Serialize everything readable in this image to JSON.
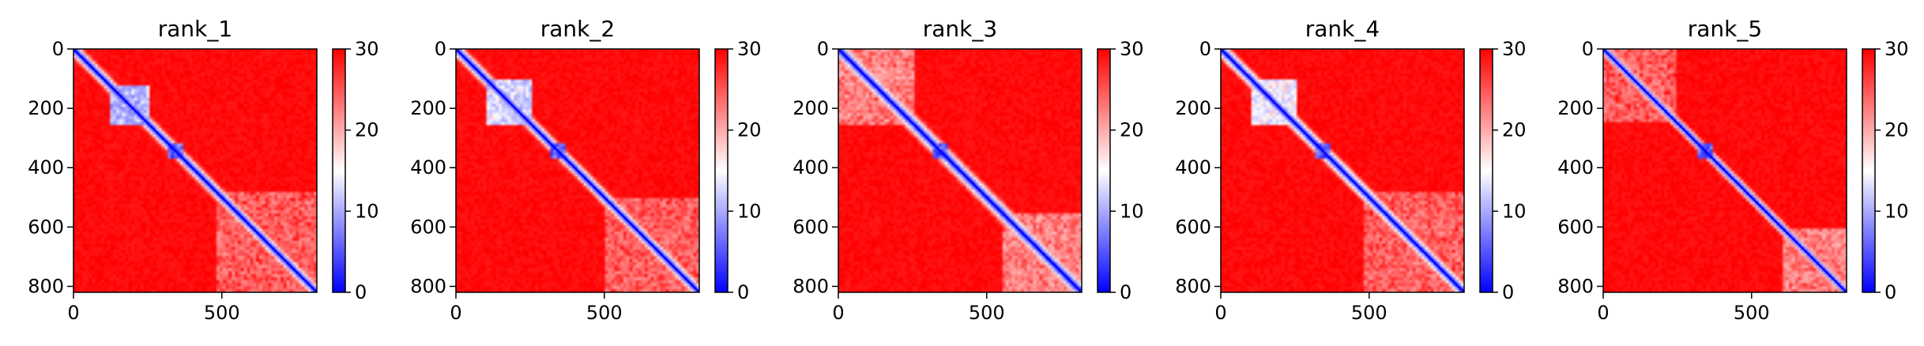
{
  "chart_data": [
    {
      "type": "heatmap",
      "title": "rank_1",
      "matrix_size": 820,
      "xlim": [
        0,
        820
      ],
      "ylim": [
        820,
        0
      ],
      "x_ticks": [
        "0",
        "500"
      ],
      "y_ticks": [
        "0",
        "200",
        "400",
        "600",
        "800"
      ],
      "colorbar": {
        "min": 0,
        "max": 30,
        "ticks": [
          "0",
          "10",
          "20",
          "30"
        ],
        "colormap": "bwr"
      },
      "dominant_value": 30,
      "diagonal_value": 0,
      "near_diagonal_width": 35,
      "blocks": [
        {
          "i0": 120,
          "i1": 260,
          "j0": 120,
          "j1": 260,
          "value": 8
        },
        {
          "i0": 320,
          "i1": 370,
          "j0": 320,
          "j1": 370,
          "value": 3
        },
        {
          "i0": 480,
          "i1": 820,
          "j0": 480,
          "j1": 820,
          "value": 22
        }
      ]
    },
    {
      "type": "heatmap",
      "title": "rank_2",
      "matrix_size": 820,
      "xlim": [
        0,
        820
      ],
      "ylim": [
        820,
        0
      ],
      "x_ticks": [
        "0",
        "500"
      ],
      "y_ticks": [
        "0",
        "200",
        "400",
        "600",
        "800"
      ],
      "colorbar": {
        "min": 0,
        "max": 30,
        "ticks": [
          "0",
          "10",
          "20",
          "30"
        ],
        "colormap": "bwr"
      },
      "dominant_value": 30,
      "diagonal_value": 0,
      "near_diagonal_width": 35,
      "blocks": [
        {
          "i0": 100,
          "i1": 260,
          "j0": 100,
          "j1": 260,
          "value": 10
        },
        {
          "i0": 320,
          "i1": 370,
          "j0": 320,
          "j1": 370,
          "value": 3
        },
        {
          "i0": 500,
          "i1": 820,
          "j0": 500,
          "j1": 820,
          "value": 22
        }
      ]
    },
    {
      "type": "heatmap",
      "title": "rank_3",
      "matrix_size": 820,
      "xlim": [
        0,
        820
      ],
      "ylim": [
        820,
        0
      ],
      "x_ticks": [
        "0",
        "500"
      ],
      "y_ticks": [
        "0",
        "200",
        "400",
        "600",
        "800"
      ],
      "colorbar": {
        "min": 0,
        "max": 30,
        "ticks": [
          "0",
          "10",
          "20",
          "30"
        ],
        "colormap": "bwr"
      },
      "dominant_value": 30,
      "diagonal_value": 0,
      "near_diagonal_width": 45,
      "blocks": [
        {
          "i0": 0,
          "i1": 260,
          "j0": 0,
          "j1": 260,
          "value": 20
        },
        {
          "i0": 320,
          "i1": 370,
          "j0": 320,
          "j1": 370,
          "value": 3
        },
        {
          "i0": 550,
          "i1": 820,
          "j0": 550,
          "j1": 820,
          "value": 20
        }
      ]
    },
    {
      "type": "heatmap",
      "title": "rank_4",
      "matrix_size": 820,
      "xlim": [
        0,
        820
      ],
      "ylim": [
        820,
        0
      ],
      "x_ticks": [
        "0",
        "500"
      ],
      "y_ticks": [
        "0",
        "200",
        "400",
        "600",
        "800"
      ],
      "colorbar": {
        "min": 0,
        "max": 30,
        "ticks": [
          "0",
          "10",
          "20",
          "30"
        ],
        "colormap": "bwr"
      },
      "dominant_value": 30,
      "diagonal_value": 0,
      "near_diagonal_width": 40,
      "blocks": [
        {
          "i0": 100,
          "i1": 260,
          "j0": 100,
          "j1": 260,
          "value": 12
        },
        {
          "i0": 320,
          "i1": 370,
          "j0": 320,
          "j1": 370,
          "value": 3
        },
        {
          "i0": 480,
          "i1": 820,
          "j0": 480,
          "j1": 820,
          "value": 22
        }
      ]
    },
    {
      "type": "heatmap",
      "title": "rank_5",
      "matrix_size": 820,
      "xlim": [
        0,
        820
      ],
      "ylim": [
        820,
        0
      ],
      "x_ticks": [
        "0",
        "500"
      ],
      "y_ticks": [
        "0",
        "200",
        "400",
        "600",
        "800"
      ],
      "colorbar": {
        "min": 0,
        "max": 30,
        "ticks": [
          "0",
          "10",
          "20",
          "30"
        ],
        "colormap": "bwr"
      },
      "dominant_value": 30,
      "diagonal_value": 0,
      "near_diagonal_width": 30,
      "blocks": [
        {
          "i0": 0,
          "i1": 250,
          "j0": 0,
          "j1": 250,
          "value": 22
        },
        {
          "i0": 320,
          "i1": 370,
          "j0": 320,
          "j1": 370,
          "value": 3
        },
        {
          "i0": 600,
          "i1": 820,
          "j0": 600,
          "j1": 820,
          "value": 20
        }
      ]
    }
  ]
}
